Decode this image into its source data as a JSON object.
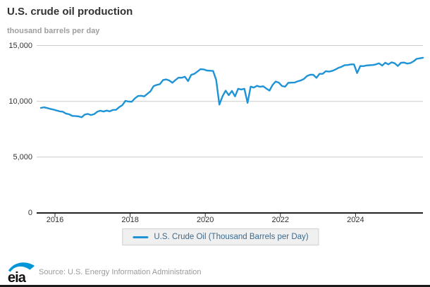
{
  "header": {
    "title": "U.S. crude oil production",
    "units_label": "thousand barrels per day"
  },
  "legend": {
    "label": "U.S. Crude Oil (Thousand Barrels per Day)"
  },
  "footer": {
    "logo_text": "eia",
    "source": "Source: U.S. Energy Information Administration"
  },
  "colors": {
    "line": "#1e93d6",
    "grid": "#cccccc",
    "axis": "#222222",
    "tick_text": "#333333",
    "legend_text": "#3a6b8f",
    "logo_blue": "#0096d7"
  },
  "chart_data": {
    "type": "line",
    "title": "U.S. crude oil production",
    "ylabel": "thousand barrels per day",
    "frequency": "monthly",
    "start_month": "2015-08",
    "end_month": "2025-10",
    "xticks": [
      2016,
      2018,
      2020,
      2022,
      2024
    ],
    "yticks": [
      0,
      5000,
      10000,
      15000
    ],
    "ylim": [
      0,
      15000
    ],
    "xlim_years": [
      2015.6,
      2025.85
    ],
    "grid": "horizontal",
    "legend_position": "bottom",
    "series": [
      {
        "name": "U.S. Crude Oil (Thousand Barrels per Day)",
        "values": [
          9410,
          9460,
          9400,
          9320,
          9260,
          9180,
          9100,
          9070,
          8900,
          8840,
          8700,
          8680,
          8650,
          8570,
          8810,
          8870,
          8770,
          8850,
          9070,
          9160,
          9080,
          9170,
          9100,
          9230,
          9240,
          9480,
          9650,
          10040,
          9980,
          9960,
          10260,
          10470,
          10500,
          10440,
          10670,
          10900,
          11360,
          11470,
          11540,
          11900,
          11960,
          11870,
          11660,
          11910,
          12120,
          12110,
          12200,
          11810,
          12370,
          12460,
          12670,
          12880,
          12860,
          12760,
          12740,
          12720,
          11910,
          9710,
          10440,
          10950,
          10550,
          10930,
          10440,
          11120,
          11060,
          11120,
          9860,
          11320,
          11230,
          11390,
          11300,
          11350,
          11140,
          10960,
          11470,
          11770,
          11670,
          11370,
          11310,
          11650,
          11670,
          11680,
          11790,
          11870,
          12000,
          12270,
          12380,
          12380,
          12100,
          12460,
          12460,
          12700,
          12660,
          12720,
          12840,
          12990,
          13090,
          13240,
          13250,
          13310,
          13310,
          12530,
          13160,
          13150,
          13210,
          13230,
          13250,
          13310,
          13400,
          13200,
          13460,
          13310,
          13490,
          13410,
          13160,
          13450,
          13470,
          13380,
          13430,
          13580,
          13800,
          13850,
          13900
        ]
      }
    ]
  }
}
